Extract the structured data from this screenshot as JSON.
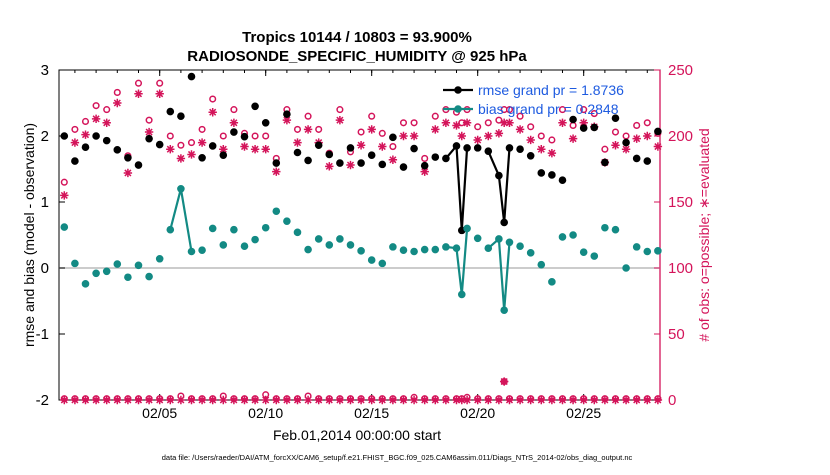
{
  "chart_data": {
    "type": "scatter",
    "title": "Tropics 10144 / 10803 = 93.900%",
    "subtitle": "RADIOSONDE_SPECIFIC_HUMIDITY @ 925 hPa",
    "xlabel": "Feb.01,2014 00:00:00 start",
    "ylabel": "rmse and bias (model - observation)",
    "ylabel_right": "# of obs: o=possible; ∗=evaluated",
    "footer": "data file: /Users/raeder/DAI/ATM_forcXX/CAM6_setup/f.e21.FHIST_BGC.f09_025.CAM6assim.011/Diags_NTrS_2014-02/obs_diag_output.nc",
    "xlim": [
      0.25,
      28.6
    ],
    "ylim": [
      -2,
      3
    ],
    "ylim_right": [
      0,
      250
    ],
    "x_ticks": [
      5,
      10,
      15,
      20,
      25
    ],
    "x_tick_labels": [
      "02/05",
      "02/10",
      "02/15",
      "02/20",
      "02/25"
    ],
    "y_ticks": [
      -2,
      -1,
      0,
      1,
      2,
      3
    ],
    "y_tick_labels": [
      "-2",
      "-1",
      "0",
      "1",
      "2",
      "3"
    ],
    "y_right_ticks": [
      0,
      50,
      100,
      150,
      200,
      250
    ],
    "y_right_tick_labels": [
      "0",
      "50",
      "100",
      "150",
      "200",
      "250"
    ],
    "grid": false,
    "legend_position": "top-right",
    "colors": {
      "rmse": "#000000",
      "bias": "#138a84",
      "obs": "#d4145a",
      "legend_text": "#1e5be0",
      "zero_line": "#bbbbbb"
    },
    "series": [
      {
        "name": "rmse grand pr = 1.8736",
        "marker": "circle-filled",
        "x": [
          0.5,
          1.0,
          1.5,
          2.0,
          2.5,
          3.0,
          3.5,
          4.0,
          4.5,
          5.0,
          5.5,
          6.0,
          6.5,
          7.0,
          7.5,
          8.0,
          8.5,
          9.0,
          9.5,
          10.0,
          10.5,
          11.0,
          11.5,
          12.0,
          12.5,
          13.0,
          13.5,
          14.0,
          14.5,
          15.0,
          15.5,
          16.0,
          16.5,
          17.0,
          17.5,
          18.0,
          18.5,
          19.0,
          19.25,
          19.5,
          20.0,
          20.5,
          21.0,
          21.25,
          21.5,
          22.0,
          22.5,
          23.0,
          23.5,
          24.0,
          24.5,
          25.0,
          25.5,
          26.0,
          26.5,
          27.0,
          27.5,
          28.0,
          28.5
        ],
        "values": [
          2.0,
          1.62,
          1.83,
          2.0,
          1.93,
          1.79,
          1.67,
          1.56,
          1.96,
          1.87,
          2.37,
          2.3,
          2.9,
          1.67,
          1.85,
          1.71,
          2.06,
          1.99,
          2.45,
          2.2,
          1.59,
          2.33,
          1.75,
          1.63,
          1.86,
          1.72,
          1.59,
          1.82,
          1.59,
          1.71,
          1.57,
          1.98,
          1.53,
          1.81,
          1.55,
          1.68,
          1.66,
          1.85,
          0.57,
          1.82,
          1.82,
          1.77,
          1.4,
          0.69,
          1.82,
          1.8,
          1.7,
          1.44,
          1.41,
          1.33,
          2.25,
          2.12,
          2.13,
          1.6,
          2.27,
          1.9,
          1.66,
          1.62,
          2.07
        ]
      },
      {
        "name": "bias grand pr = 0.2848",
        "marker": "circle-filled",
        "x": [
          0.5,
          1.0,
          1.5,
          2.0,
          2.5,
          3.0,
          3.5,
          4.0,
          4.5,
          5.0,
          5.5,
          6.0,
          6.5,
          7.0,
          7.5,
          8.0,
          8.5,
          9.0,
          9.5,
          10.0,
          10.5,
          11.0,
          11.5,
          12.0,
          12.5,
          13.0,
          13.5,
          14.0,
          14.5,
          15.0,
          15.5,
          16.0,
          16.5,
          17.0,
          17.5,
          18.0,
          18.5,
          19.0,
          19.25,
          19.5,
          20.0,
          20.5,
          21.0,
          21.25,
          21.5,
          22.0,
          22.5,
          23.0,
          23.5,
          24.0,
          24.5,
          25.0,
          25.5,
          26.0,
          26.5,
          27.0,
          27.5,
          28.0,
          28.5
        ],
        "values": [
          0.62,
          0.07,
          -0.24,
          -0.08,
          -0.05,
          0.06,
          -0.14,
          0.04,
          -0.13,
          0.14,
          0.58,
          1.2,
          0.25,
          0.27,
          0.6,
          0.35,
          0.58,
          0.33,
          0.43,
          0.61,
          0.86,
          0.71,
          0.54,
          0.28,
          0.44,
          0.35,
          0.44,
          0.35,
          0.26,
          0.12,
          0.07,
          0.32,
          0.27,
          0.25,
          0.28,
          0.28,
          0.32,
          0.3,
          -0.4,
          0.6,
          0.45,
          0.3,
          0.44,
          -0.64,
          0.39,
          0.33,
          0.23,
          0.05,
          -0.21,
          0.47,
          0.5,
          0.24,
          0.18,
          0.61,
          0.58,
          0.0,
          0.32,
          0.25,
          0.26
        ]
      },
      {
        "name": "possible obs",
        "axis": "right",
        "marker": "circle-open",
        "x": [
          0.5,
          1.0,
          1.5,
          2.0,
          2.5,
          3.0,
          3.5,
          4.0,
          4.5,
          5.0,
          5.5,
          6.0,
          6.5,
          7.0,
          7.5,
          8.0,
          8.5,
          9.0,
          9.5,
          10.0,
          10.5,
          11.0,
          11.5,
          12.0,
          12.5,
          13.0,
          13.5,
          14.0,
          14.5,
          15.0,
          15.5,
          16.0,
          16.5,
          17.0,
          17.5,
          18.0,
          18.5,
          19.0,
          19.25,
          19.5,
          20.0,
          20.5,
          21.0,
          21.25,
          21.5,
          22.0,
          22.5,
          23.0,
          23.5,
          24.0,
          24.5,
          25.0,
          25.5,
          26.0,
          26.5,
          27.0,
          27.5,
          28.0,
          28.5
        ],
        "values": [
          165,
          205,
          211,
          223,
          220,
          233,
          185,
          240,
          212,
          240,
          200,
          193,
          195,
          205,
          228,
          200,
          220,
          202,
          200,
          200,
          183,
          220,
          205,
          215,
          205,
          187,
          220,
          188,
          203,
          215,
          202,
          192,
          210,
          210,
          183,
          215,
          220,
          218,
          210,
          220,
          207,
          210,
          212,
          220,
          220,
          215,
          207,
          200,
          197,
          220,
          208,
          220,
          217,
          190,
          203,
          200,
          208,
          210,
          202
        ]
      },
      {
        "name": "evaluated obs",
        "axis": "right",
        "marker": "star",
        "x": [
          0.5,
          1.0,
          1.5,
          2.0,
          2.5,
          3.0,
          3.5,
          4.0,
          4.5,
          5.0,
          5.5,
          6.0,
          6.5,
          7.0,
          7.5,
          8.0,
          8.5,
          9.0,
          9.5,
          10.0,
          10.5,
          11.0,
          11.5,
          12.0,
          12.5,
          13.0,
          13.5,
          14.0,
          14.5,
          15.0,
          15.5,
          16.0,
          16.5,
          17.0,
          17.5,
          18.0,
          18.5,
          19.0,
          19.25,
          19.5,
          20.0,
          20.5,
          21.0,
          21.25,
          21.5,
          22.0,
          22.5,
          23.0,
          23.5,
          24.0,
          24.5,
          25.0,
          25.5,
          26.0,
          26.5,
          27.0,
          27.5,
          28.0,
          28.5
        ],
        "values": [
          155,
          195,
          201,
          213,
          210,
          225,
          172,
          232,
          203,
          232,
          190,
          183,
          186,
          195,
          218,
          190,
          210,
          192,
          190,
          190,
          173,
          212,
          195,
          205,
          195,
          177,
          212,
          178,
          193,
          205,
          192,
          182,
          200,
          200,
          173,
          205,
          210,
          208,
          200,
          210,
          197,
          200,
          202,
          210,
          210,
          205,
          197,
          190,
          187,
          210,
          198,
          210,
          207,
          180,
          193,
          190,
          198,
          200,
          192
        ]
      },
      {
        "name": "possible obs (low)",
        "axis": "right",
        "marker": "circle-open",
        "x": [
          0.5,
          1.0,
          1.5,
          2.0,
          2.5,
          3.0,
          3.5,
          4.0,
          4.5,
          5.0,
          5.5,
          6.0,
          6.5,
          7.0,
          7.5,
          8.0,
          8.5,
          9.0,
          9.5,
          10.0,
          10.5,
          11.0,
          11.5,
          12.0,
          12.5,
          13.0,
          13.5,
          14.0,
          14.5,
          15.0,
          15.5,
          16.0,
          16.5,
          17.0,
          17.5,
          18.0,
          18.5,
          19.0,
          19.25,
          19.5,
          20.0,
          20.5,
          21.0,
          21.25,
          21.5,
          22.0,
          22.5,
          23.0,
          23.5,
          24.0,
          24.5,
          25.0,
          25.5,
          26.0,
          26.5,
          27.0,
          27.5,
          28.0,
          28.5
        ],
        "values": [
          1,
          1,
          1,
          1,
          1,
          1,
          1,
          1,
          1,
          1,
          1,
          3,
          1,
          1,
          1,
          3,
          1,
          1,
          1,
          4,
          1,
          1,
          1,
          3,
          1,
          1,
          1,
          1,
          1,
          1,
          1,
          1,
          1,
          2,
          1,
          1,
          1,
          1,
          1,
          2,
          1,
          1,
          1,
          14,
          1,
          1,
          1,
          1,
          1,
          1,
          1,
          1,
          1,
          1,
          1,
          1,
          1,
          1,
          1
        ]
      },
      {
        "name": "evaluated obs (low)",
        "axis": "right",
        "marker": "star",
        "x": [
          0.5,
          1.0,
          1.5,
          2.0,
          2.5,
          3.0,
          3.5,
          4.0,
          4.5,
          5.0,
          5.5,
          6.0,
          6.5,
          7.0,
          7.5,
          8.0,
          8.5,
          9.0,
          9.5,
          10.0,
          10.5,
          11.0,
          11.5,
          12.0,
          12.5,
          13.0,
          13.5,
          14.0,
          14.5,
          15.0,
          15.5,
          16.0,
          16.5,
          17.0,
          17.5,
          18.0,
          18.5,
          19.0,
          19.25,
          19.5,
          20.0,
          20.5,
          21.0,
          21.25,
          21.5,
          22.0,
          22.5,
          23.0,
          23.5,
          24.0,
          24.5,
          25.0,
          25.5,
          26.0,
          26.5,
          27.0,
          27.5,
          28.0,
          28.5
        ],
        "values": [
          0,
          0,
          0,
          0,
          0,
          0,
          0,
          0,
          0,
          0,
          0,
          0,
          0,
          0,
          0,
          0,
          0,
          0,
          0,
          0,
          0,
          0,
          0,
          0,
          0,
          0,
          0,
          0,
          0,
          0,
          0,
          0,
          0,
          0,
          0,
          0,
          0,
          0,
          0,
          0,
          0,
          0,
          0,
          14,
          0,
          0,
          0,
          0,
          0,
          0,
          0,
          0,
          0,
          0,
          0,
          0,
          0,
          0,
          0
        ]
      }
    ],
    "connected_segments": {
      "rmse": [
        [
          18.5,
          19.0,
          19.25,
          19.5
        ],
        [
          20.5,
          21.0,
          21.25,
          21.5
        ]
      ],
      "bias": [
        [
          5.5,
          6.0,
          6.5
        ],
        [
          18.5,
          19.0,
          19.25,
          19.5
        ],
        [
          20.5,
          21.0,
          21.25,
          21.5
        ]
      ]
    }
  }
}
